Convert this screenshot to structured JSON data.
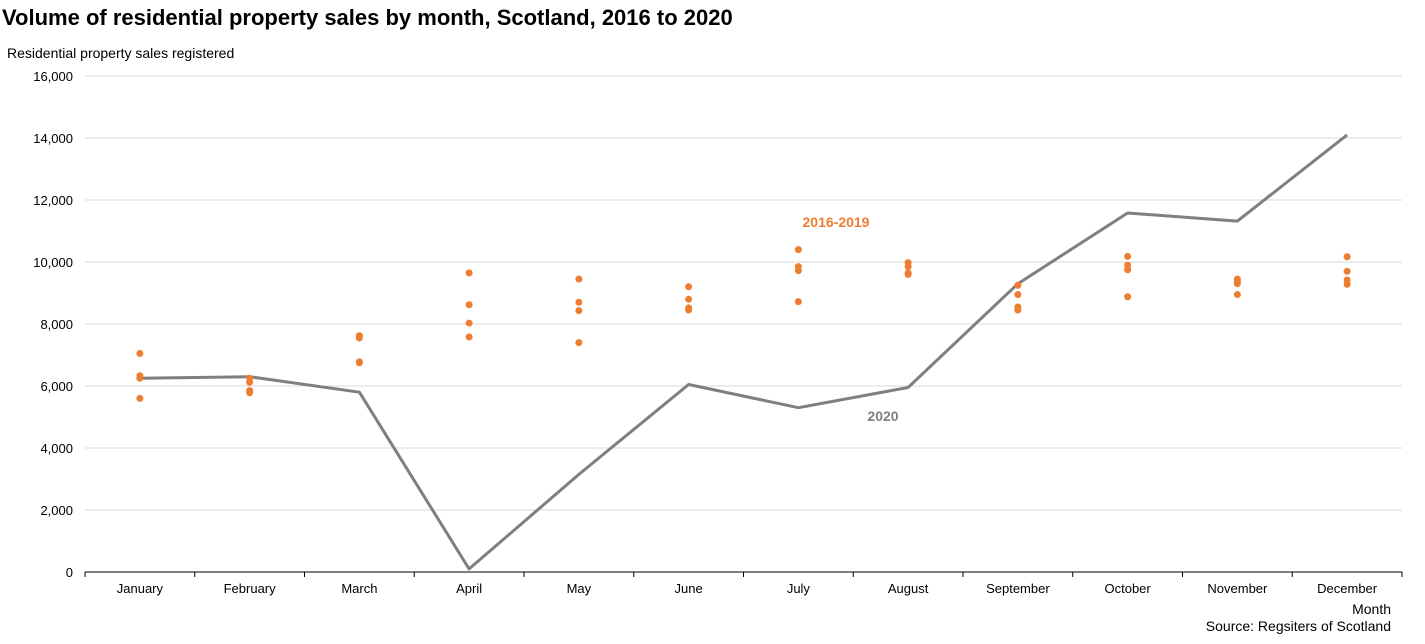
{
  "chart_data": {
    "type": "line",
    "title": "Volume of residential property sales by month, Scotland, 2016 to 2020",
    "ylabel": "Residential property sales registered",
    "xlabel": "Month",
    "source": "Source: Regsiters of Scotland",
    "ylim": [
      0,
      16000
    ],
    "yticks": [
      0,
      2000,
      4000,
      6000,
      8000,
      10000,
      12000,
      14000,
      16000
    ],
    "ytick_labels": [
      "0",
      "2,000",
      "4,000",
      "6,000",
      "8,000",
      "10,000",
      "12,000",
      "14,000",
      "16,000"
    ],
    "grid": true,
    "categories": [
      "January",
      "February",
      "March",
      "April",
      "May",
      "June",
      "July",
      "August",
      "September",
      "October",
      "November",
      "December"
    ],
    "series": [
      {
        "name": "2020",
        "kind": "line",
        "color": "#7f7f7f",
        "label": "2020",
        "values": [
          6250,
          6300,
          5800,
          100,
          3150,
          6050,
          5300,
          5950,
          9300,
          11580,
          11320,
          14100
        ]
      },
      {
        "name": "2016-2019",
        "kind": "scatter",
        "color": "#ed7d31",
        "label": "2016-2019",
        "values": [
          [
            7050,
            6330,
            6250,
            5600
          ],
          [
            6250,
            6120,
            5850,
            5780
          ],
          [
            7620,
            7550,
            6780,
            6750
          ],
          [
            9650,
            8620,
            8030,
            7580
          ],
          [
            9450,
            8700,
            8430,
            7400
          ],
          [
            9200,
            8800,
            8520,
            8450
          ],
          [
            10400,
            9850,
            9720,
            8720
          ],
          [
            9980,
            9850,
            9650,
            9600
          ],
          [
            9250,
            8950,
            8550,
            8450
          ],
          [
            10180,
            9900,
            9750,
            8880
          ],
          [
            9450,
            9380,
            9300,
            8950
          ],
          [
            10170,
            9700,
            9420,
            9280
          ]
        ]
      }
    ]
  }
}
